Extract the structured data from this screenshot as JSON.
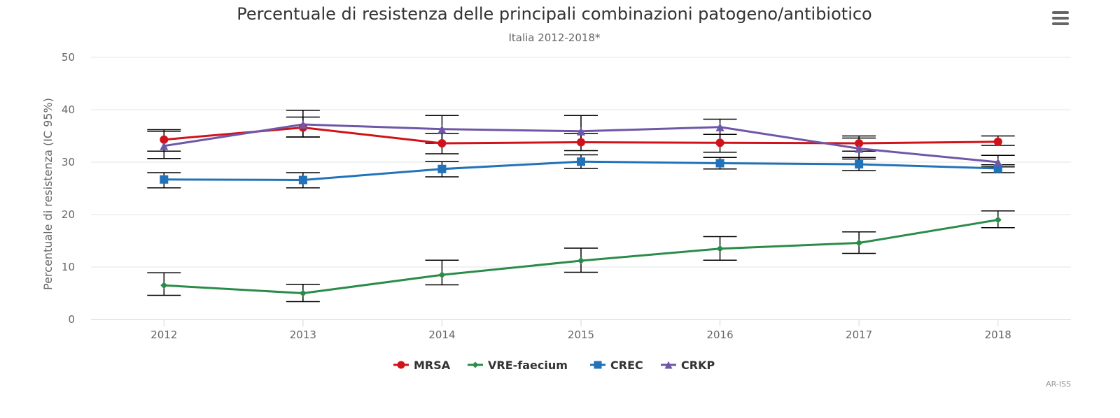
{
  "menu": {
    "icon": "hamburger-menu-icon"
  },
  "credits": "AR-ISS",
  "chart_data": {
    "type": "line",
    "title": "Percentuale di resistenza delle principali combinazioni patogeno/antibiotico",
    "subtitle": "Italia 2012-2018*",
    "xlabel": "",
    "ylabel": "Percentuale di resistenza (IC 95%)",
    "categories": [
      "2012",
      "2013",
      "2014",
      "2015",
      "2016",
      "2017",
      "2018"
    ],
    "ylim": [
      0,
      50
    ],
    "yticks": [
      0,
      10,
      20,
      30,
      40,
      50
    ],
    "grid": true,
    "legend_position": "bottom-center",
    "error_bars": true,
    "series": [
      {
        "name": "MRSA",
        "color": "#d0121b",
        "marker": "circle",
        "values": [
          34.3,
          36.6,
          33.6,
          33.8,
          33.7,
          33.6,
          33.9
        ],
        "ci_low": [
          32.1,
          34.8,
          31.6,
          32.2,
          31.9,
          32.1,
          33.2
        ],
        "ci_high": [
          36.2,
          38.6,
          35.5,
          35.5,
          35.3,
          35.0,
          35.0
        ]
      },
      {
        "name": "VRE-faecium",
        "color": "#2a8c48",
        "marker": "diamond",
        "values": [
          6.5,
          5.0,
          8.5,
          11.2,
          13.5,
          14.6,
          19.0
        ],
        "ci_low": [
          4.6,
          3.4,
          6.6,
          9.0,
          11.3,
          12.6,
          17.5
        ],
        "ci_high": [
          8.9,
          6.7,
          11.3,
          13.6,
          15.8,
          16.7,
          20.7
        ]
      },
      {
        "name": "CREC",
        "color": "#2272b9",
        "marker": "square",
        "values": [
          26.7,
          26.6,
          28.7,
          30.1,
          29.8,
          29.6,
          28.8
        ],
        "ci_low": [
          25.1,
          25.1,
          27.2,
          28.8,
          28.7,
          28.4,
          28.0
        ],
        "ci_high": [
          28.0,
          28.0,
          30.1,
          31.4,
          30.9,
          30.9,
          29.5
        ]
      },
      {
        "name": "CRKP",
        "color": "#6f57a8",
        "marker": "triangle",
        "values": [
          33.1,
          37.2,
          36.3,
          35.9,
          36.7,
          32.6,
          30.0
        ],
        "ci_low": [
          30.7,
          34.8,
          33.6,
          33.8,
          33.7,
          30.6,
          29.1
        ],
        "ci_high": [
          35.9,
          39.9,
          38.9,
          38.9,
          38.2,
          34.6,
          31.3
        ]
      }
    ]
  }
}
